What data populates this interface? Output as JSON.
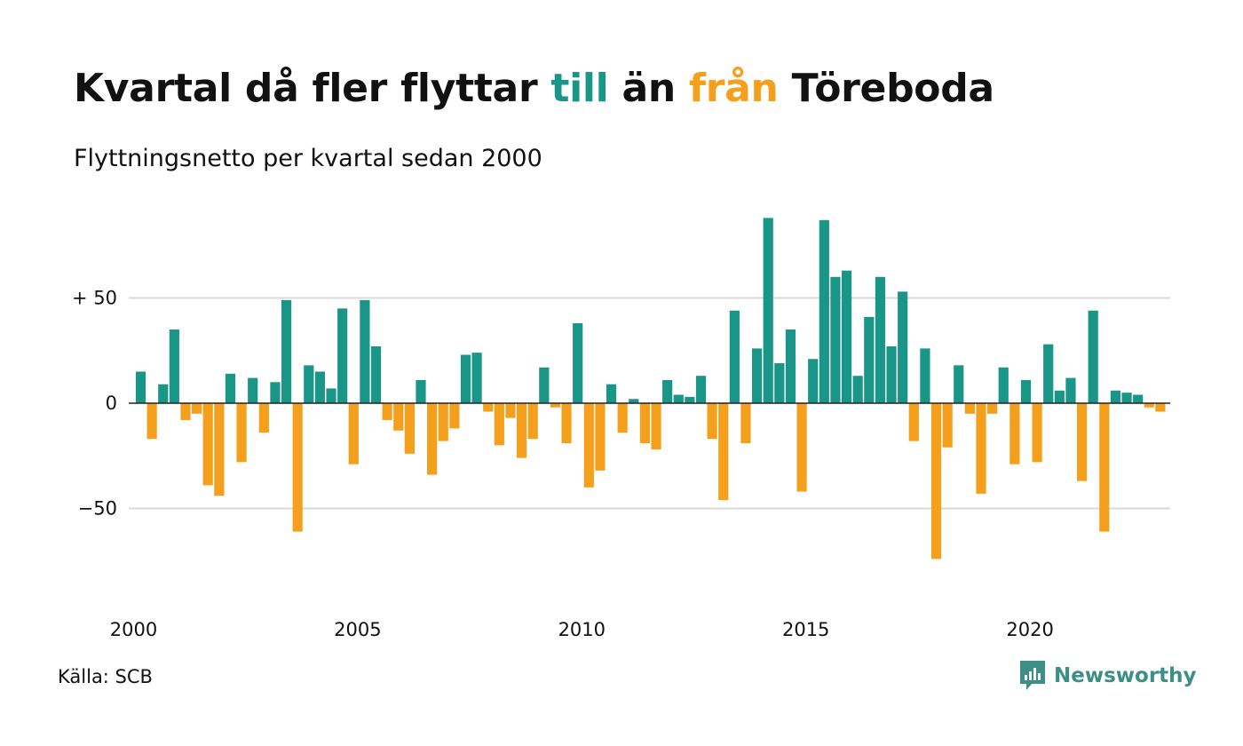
{
  "title": {
    "part1": "Kvartal då fler flyttar ",
    "highlight_positive": "till",
    "part2": " än ",
    "highlight_negative": "från",
    "part3": " Töreboda"
  },
  "subtitle": "Flyttningsnetto per kvartal sedan 2000",
  "source": "Källa: SCB",
  "logo": {
    "text": "Newsworthy",
    "icon": "newsworthy-chart-icon"
  },
  "colors": {
    "positive": "#1a9688",
    "negative": "#f5a01c",
    "grid": "#d9d9d9",
    "zero": "#222222",
    "logo": "#3d8f86"
  },
  "chart_data": {
    "type": "bar",
    "title": "Kvartal då fler flyttar till än från Töreboda",
    "subtitle": "Flyttningsnetto per kvartal sedan 2000",
    "xlabel": "",
    "ylabel": "",
    "start_year": 2000,
    "values_per_year": 4,
    "x_ticks": [
      "2000",
      "2005",
      "2010",
      "2015",
      "2020"
    ],
    "x_tick_years": [
      2000,
      2005,
      2010,
      2015,
      2020
    ],
    "y_ticks": [
      {
        "value": 50,
        "label": "+ 50"
      },
      {
        "value": 0,
        "label": "0"
      },
      {
        "value": -50,
        "label": "−50"
      }
    ],
    "ylim": [
      -92,
      88
    ],
    "grid": true,
    "legend": "none",
    "values": [
      15,
      -17,
      9,
      35,
      -8,
      -5,
      -39,
      -44,
      14,
      -28,
      12,
      -14,
      10,
      49,
      -61,
      18,
      15,
      7,
      45,
      -29,
      49,
      27,
      -8,
      -13,
      -24,
      11,
      -34,
      -18,
      -12,
      23,
      24,
      -4,
      -20,
      -7,
      -26,
      -17,
      17,
      -2,
      -19,
      38,
      -40,
      -32,
      9,
      -14,
      2,
      -19,
      -22,
      11,
      4,
      3,
      13,
      -17,
      -46,
      44,
      -19,
      26,
      88,
      19,
      35,
      -42,
      21,
      87,
      60,
      63,
      13,
      41,
      60,
      27,
      53,
      -18,
      26,
      -74,
      -21,
      18,
      -5,
      -43,
      -5,
      17,
      -29,
      11,
      -28,
      28,
      6,
      12,
      -37,
      44,
      -61,
      6,
      5,
      4,
      -2,
      -4
    ]
  }
}
